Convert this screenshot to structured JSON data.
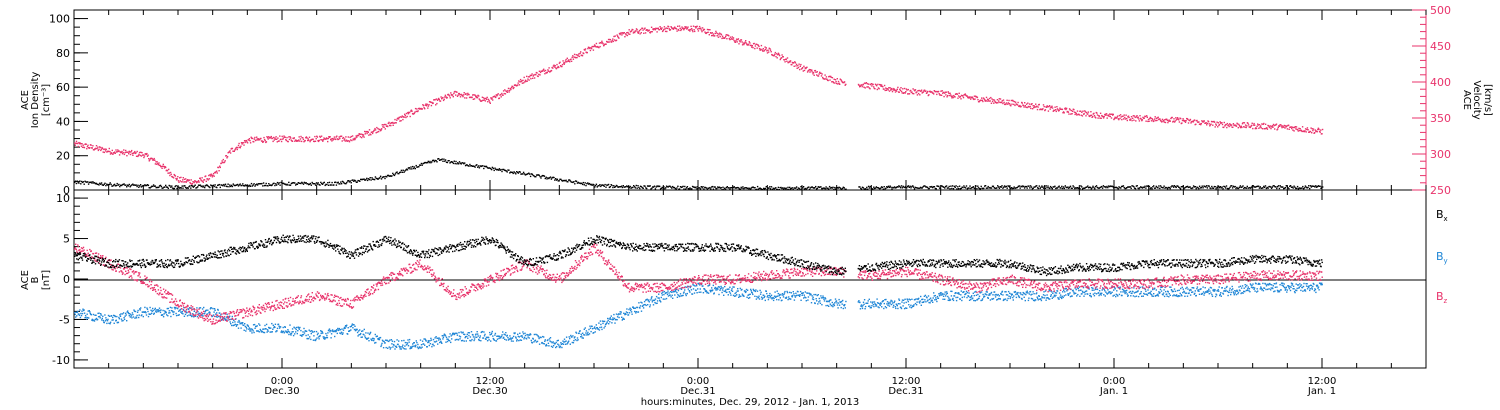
{
  "colors": {
    "black": "#000000",
    "pink": "#e8336b",
    "blue": "#1f86d6"
  },
  "xaxis": {
    "title": "hours:minutes, Dec. 29, 2012 - Jan.  1, 2013",
    "range_hours": [
      0,
      72
    ],
    "ticks": [
      {
        "t": 12,
        "time": "0:00",
        "date": "Dec.30"
      },
      {
        "t": 24,
        "time": "12:00",
        "date": "Dec.30"
      },
      {
        "t": 36,
        "time": "0:00",
        "date": "Dec.31"
      },
      {
        "t": 48,
        "time": "12:00",
        "date": "Dec.31"
      },
      {
        "t": 60,
        "time": "0:00",
        "date": "Jan. 1"
      },
      {
        "t": 72,
        "time": "12:00",
        "date": "Jan. 1"
      }
    ]
  },
  "panel_top": {
    "left_label": [
      "ACE",
      "Ion Density",
      "[cm⁻³]"
    ],
    "right_label": [
      "ACE",
      "Velocity",
      "[km/s]"
    ],
    "left_ticks": [
      "0",
      "20",
      "40",
      "60",
      "80",
      "100"
    ],
    "right_ticks": [
      "250",
      "300",
      "350",
      "400",
      "450",
      "500"
    ]
  },
  "panel_bottom": {
    "left_label": [
      "ACE",
      "B",
      "[nT]"
    ],
    "left_ticks": [
      "-10",
      "-5",
      "0",
      "5",
      "10"
    ],
    "legend": [
      {
        "main": "B",
        "sub": "x"
      },
      {
        "main": "B",
        "sub": "y"
      },
      {
        "main": "B",
        "sub": "z"
      }
    ]
  },
  "chart_data": [
    {
      "type": "scatter",
      "x_unit": "hours since Dec. 29, 2012 12:00",
      "xlim": [
        0,
        78
      ],
      "ylim_left": [
        0,
        105
      ],
      "ylim_right": [
        250,
        500
      ],
      "series": [
        {
          "axis": "left",
          "x": [
            0,
            3,
            6,
            9,
            12,
            15,
            18,
            20,
            21,
            24,
            27,
            30,
            33,
            36,
            39,
            42,
            45,
            48,
            51,
            54,
            57,
            60,
            63,
            66,
            69,
            72
          ],
          "values": [
            5,
            3,
            2,
            3,
            4,
            4,
            8,
            15,
            18,
            13,
            8,
            3,
            2,
            1.5,
            1.5,
            1.5,
            1.5,
            2,
            2,
            2,
            2,
            2,
            2,
            2,
            2,
            2
          ]
        },
        {
          "axis": "right",
          "x": [
            0,
            2,
            4,
            5,
            6,
            7,
            8,
            9,
            10,
            12,
            14,
            16,
            18,
            20,
            22,
            24,
            26,
            28,
            30,
            32,
            34,
            36,
            38,
            40,
            42,
            44,
            46,
            48,
            50,
            52,
            54,
            56,
            58,
            60,
            62,
            64,
            66,
            68,
            70,
            72
          ],
          "values": [
            315,
            305,
            300,
            285,
            265,
            262,
            270,
            305,
            320,
            322,
            322,
            322,
            340,
            365,
            385,
            375,
            405,
            425,
            450,
            470,
            475,
            475,
            460,
            445,
            420,
            402,
            395,
            388,
            385,
            378,
            372,
            365,
            358,
            352,
            350,
            347,
            342,
            340,
            338,
            332
          ]
        }
      ]
    },
    {
      "type": "scatter",
      "x_unit": "hours since Dec. 29, 2012 12:00",
      "xlim": [
        0,
        78
      ],
      "ylim": [
        -11,
        11
      ],
      "series": [
        {
          "name": "Bx",
          "x": [
            0,
            2,
            4,
            6,
            8,
            10,
            12,
            14,
            16,
            18,
            20,
            22,
            24,
            26,
            28,
            30,
            32,
            34,
            36,
            38,
            40,
            42,
            44,
            46,
            48,
            50,
            52,
            54,
            56,
            58,
            60,
            62,
            64,
            66,
            68,
            70,
            72
          ],
          "values": [
            3,
            2,
            2,
            2,
            3,
            4,
            5,
            5,
            3,
            5,
            3,
            4,
            5,
            2,
            3,
            5,
            4,
            4,
            4,
            4,
            3,
            2,
            1,
            1.5,
            2,
            2,
            2,
            2,
            1,
            1.5,
            1.5,
            2,
            2,
            2,
            2.5,
            2.5,
            2
          ]
        },
        {
          "name": "By",
          "x": [
            0,
            2,
            4,
            6,
            8,
            10,
            12,
            14,
            16,
            18,
            20,
            22,
            24,
            26,
            28,
            30,
            32,
            34,
            36,
            38,
            40,
            42,
            44,
            46,
            48,
            50,
            52,
            54,
            56,
            58,
            60,
            62,
            64,
            66,
            68,
            70,
            72
          ],
          "values": [
            -4,
            -5,
            -4,
            -4,
            -4,
            -6,
            -6,
            -7,
            -6,
            -8,
            -8,
            -7,
            -7,
            -7,
            -8,
            -6,
            -4,
            -2,
            -1,
            -1.5,
            -2,
            -2,
            -3,
            -3,
            -3,
            -2,
            -2,
            -2,
            -2,
            -1.5,
            -1.5,
            -1.5,
            -1.5,
            -1.5,
            -1,
            -1,
            -1
          ]
        },
        {
          "name": "Bz",
          "x": [
            0,
            2,
            4,
            6,
            8,
            10,
            12,
            14,
            16,
            18,
            20,
            22,
            24,
            26,
            28,
            30,
            32,
            34,
            36,
            38,
            40,
            42,
            44,
            46,
            48,
            50,
            52,
            54,
            56,
            58,
            60,
            62,
            64,
            66,
            68,
            70,
            72
          ],
          "values": [
            4,
            2,
            0,
            -3,
            -5,
            -4,
            -3,
            -2,
            -3,
            0,
            2,
            -2,
            0,
            2,
            0,
            4,
            -1,
            -1,
            0,
            0,
            0.5,
            1,
            1,
            0.5,
            1,
            0,
            -1,
            0,
            -1,
            -0.5,
            -0.5,
            -0.5,
            0,
            0,
            0.5,
            0.5,
            0.5
          ]
        }
      ]
    }
  ]
}
